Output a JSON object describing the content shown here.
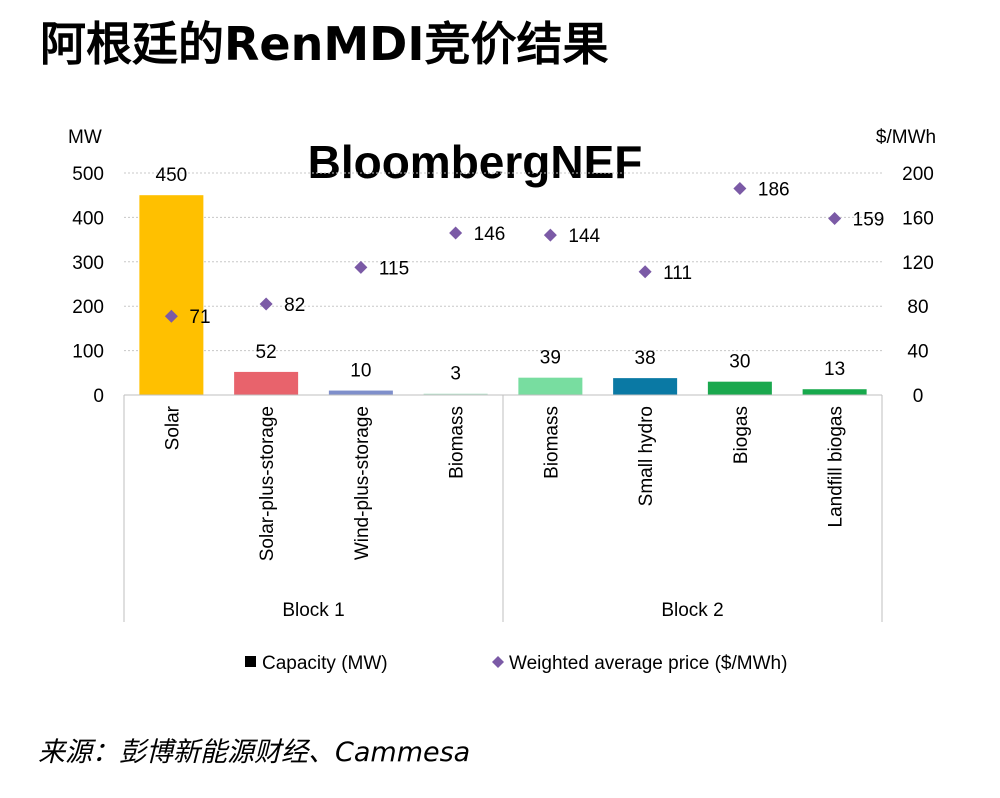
{
  "page": {
    "title": "阿根廷的RenMDI竞价结果",
    "source": "来源：彭博新能源财经、Cammesa",
    "brand": "BloombergNEF"
  },
  "chart_data": {
    "type": "bar",
    "y_left_label": "MW",
    "y_right_label": "$/MWh",
    "ylim_left": [
      0,
      500
    ],
    "ylim_right": [
      0,
      200
    ],
    "y_left_ticks": [
      0,
      100,
      200,
      300,
      400,
      500
    ],
    "y_right_ticks": [
      0,
      40,
      80,
      120,
      160,
      200
    ],
    "categories": [
      "Solar",
      "Solar-plus-storage",
      "Wind-plus-storage",
      "Biomass",
      "Biomass",
      "Small hydro",
      "Biogas",
      "Landfill biogas"
    ],
    "groups": [
      {
        "name": "Block 1",
        "span": [
          0,
          3
        ]
      },
      {
        "name": "Block 2",
        "span": [
          4,
          7
        ]
      }
    ],
    "series": [
      {
        "name": "Capacity (MW)",
        "kind": "bar",
        "axis": "left",
        "values": [
          450,
          52,
          10,
          3,
          39,
          38,
          30,
          13
        ],
        "colors": [
          "#FFC000",
          "#E8636C",
          "#7F8FCB",
          "#B7E4CC",
          "#78DDA0",
          "#0A79A4",
          "#1AA84E",
          "#17A94C"
        ]
      },
      {
        "name": "Weighted average price ($/MWh)",
        "kind": "marker",
        "axis": "right",
        "values": [
          71,
          82,
          115,
          146,
          144,
          111,
          186,
          159
        ],
        "color": "#7B5AA6"
      }
    ],
    "legend_position": "bottom",
    "grid": true
  }
}
